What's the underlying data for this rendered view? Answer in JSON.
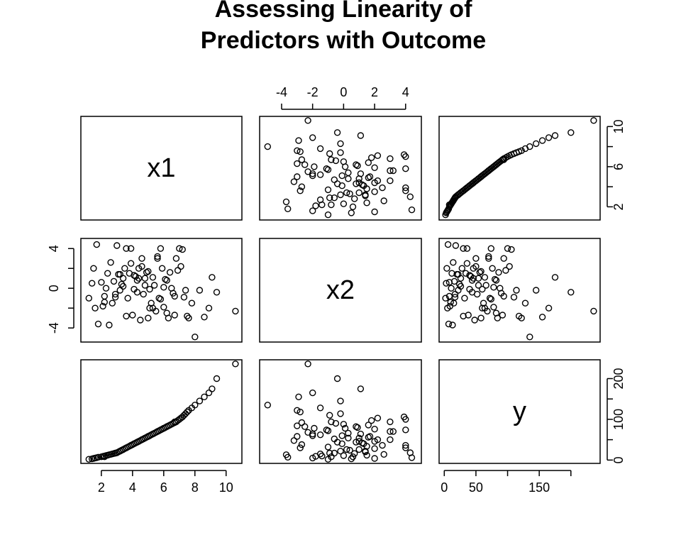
{
  "chart_data": {
    "type": "scatter",
    "title_lines": [
      "Assessing Linearity of",
      "Predictors with Outcome"
    ],
    "variables": [
      {
        "name": "x1",
        "range": [
          1.1,
          10.6
        ],
        "ticks": [
          2,
          4,
          6,
          8,
          10
        ],
        "tick_labels": [
          "2",
          "4",
          "6",
          "8",
          "10"
        ]
      },
      {
        "name": "x2",
        "range": [
          -5.0,
          4.6
        ],
        "ticks": [
          -4,
          -2,
          0,
          2,
          4
        ],
        "tick_labels": [
          "-4",
          "-2",
          "0",
          "2",
          "4"
        ]
      },
      {
        "name": "y",
        "range": [
          2,
          236
        ],
        "ticks": [
          0,
          50,
          100,
          150,
          200
        ],
        "tick_labels": [
          "0",
          "50",
          "",
          "150",
          ""
        ]
      }
    ],
    "right_axis_labels": {
      "x1": [
        "2",
        "6",
        "10"
      ],
      "y": [
        "0",
        "100",
        "200"
      ]
    },
    "left_axis_labels": {
      "x2": [
        "-4",
        "0",
        "4"
      ]
    },
    "points": {
      "x1": [
        1.2,
        1.4,
        1.5,
        1.6,
        1.7,
        1.8,
        2.0,
        2.1,
        2.2,
        2.3,
        2.4,
        2.5,
        2.6,
        2.7,
        2.8,
        2.9,
        3.0,
        3.1,
        3.2,
        3.3,
        3.4,
        3.5,
        3.6,
        3.7,
        3.8,
        3.9,
        4.0,
        4.1,
        4.2,
        4.3,
        4.4,
        4.5,
        4.6,
        4.7,
        4.8,
        4.9,
        5.0,
        5.1,
        5.2,
        5.3,
        5.4,
        5.5,
        5.6,
        5.7,
        5.8,
        5.9,
        6.0,
        6.1,
        6.2,
        6.3,
        6.4,
        6.5,
        6.6,
        6.7,
        6.8,
        6.9,
        7.0,
        7.1,
        7.2,
        7.3,
        7.4,
        7.5,
        7.6,
        7.8,
        8.0,
        8.3,
        8.6,
        8.9,
        9.1,
        9.4,
        10.6,
        2.2,
        3.4,
        4.3,
        5.0,
        5.6,
        6.2,
        4.8,
        3.9,
        5.3,
        4.1,
        6.0,
        2.9,
        4.6,
        5.8,
        3.6,
        4.4,
        5.1,
        6.7,
        3.2
      ],
      "x2": [
        -1.0,
        0.5,
        2.0,
        -2.0,
        4.4,
        -3.6,
        0.6,
        -1.8,
        -1.4,
        0.0,
        1.5,
        -3.7,
        2.6,
        -1.5,
        0.7,
        -0.6,
        4.3,
        1.4,
        -0.2,
        0.4,
        1.0,
        2.0,
        4.0,
        -1.0,
        1.5,
        4.0,
        -2.7,
        -0.1,
        1.2,
        0.8,
        2.0,
        -3.2,
        3.0,
        -0.6,
        1.0,
        1.6,
        -3.0,
        -2.0,
        -1.5,
        1.1,
        0.3,
        -2.3,
        3.2,
        -1.0,
        4.0,
        2.0,
        -1.9,
        0.9,
        -2.5,
        -3.0,
        1.6,
        0.0,
        -0.5,
        -2.7,
        3.0,
        1.8,
        4.0,
        2.2,
        3.9,
        -0.9,
        -0.2,
        -2.8,
        -3.0,
        -1.5,
        -4.9,
        -0.2,
        -2.9,
        -2.0,
        1.1,
        -0.4,
        -2.3,
        -0.8,
        0.2,
        -0.4,
        1.7,
        3.0,
        0.8,
        0.3,
        2.5,
        -2.0,
        1.3,
        0.1,
        -0.9,
        2.2,
        -1.1,
        -2.8,
        1.0,
        -0.1,
        -0.8,
        1.4
      ],
      "y": [
        2,
        3,
        4,
        5,
        6,
        7,
        8,
        9,
        10,
        11,
        12,
        13,
        14,
        15,
        16,
        17,
        18,
        20,
        22,
        24,
        26,
        28,
        30,
        32,
        34,
        36,
        38,
        40,
        42,
        44,
        46,
        48,
        50,
        52,
        54,
        56,
        58,
        60,
        62,
        64,
        66,
        68,
        70,
        72,
        74,
        76,
        78,
        80,
        82,
        84,
        86,
        88,
        90,
        92,
        94,
        97,
        100,
        103,
        106,
        110,
        114,
        118,
        122,
        128,
        135,
        145,
        155,
        165,
        175,
        200,
        236,
        8,
        26,
        44,
        58,
        70,
        82,
        54,
        36,
        64,
        40,
        78,
        17,
        50,
        74,
        30,
        46,
        60,
        94,
        22
      ]
    }
  }
}
